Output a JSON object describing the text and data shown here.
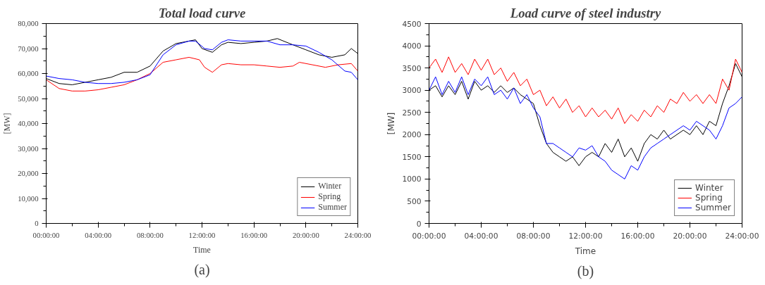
{
  "chart_data": [
    {
      "type": "line",
      "title": "Total load curve",
      "xlabel": "Time",
      "ylabel": "[MW]",
      "annotations": [
        "(a)"
      ],
      "xlim": [
        0,
        24
      ],
      "ylim": [
        0,
        80000
      ],
      "xticks": [
        {
          "value": 0,
          "label": "00:00:00"
        },
        {
          "value": 4,
          "label": "04:00:00"
        },
        {
          "value": 8,
          "label": "08:00:00"
        },
        {
          "value": 12,
          "label": "12:00:00"
        },
        {
          "value": 16,
          "label": "16:00:00"
        },
        {
          "value": 20,
          "label": "20:00:00"
        },
        {
          "value": 24,
          "label": "24:00:00"
        }
      ],
      "yticks": [
        0,
        {
          "value": 10000,
          "label": "10,000"
        },
        {
          "value": 20000,
          "label": "20,000"
        },
        {
          "value": 30000,
          "label": "30,000"
        },
        {
          "value": 40000,
          "label": "40,000"
        },
        {
          "value": 50000,
          "label": "50,000"
        },
        {
          "value": 60000,
          "label": "60,000"
        },
        {
          "value": 70000,
          "label": "70,000"
        },
        {
          "value": 80000,
          "label": "80,000"
        }
      ],
      "grid": false,
      "legend": "bottom right",
      "marker": "none",
      "line_style": "solid",
      "series": [
        {
          "name": "Winter",
          "color": "#000000",
          "x": [
            0,
            1,
            2,
            3,
            4,
            5,
            6,
            7,
            8,
            9,
            10,
            11,
            11.5,
            12,
            12.8,
            13.5,
            14,
            15,
            16,
            17,
            17.8,
            19,
            20,
            21,
            22,
            23,
            23.5,
            24
          ],
          "values": [
            58000,
            56000,
            55500,
            56500,
            57500,
            58500,
            60500,
            60500,
            63000,
            69000,
            72000,
            73000,
            73500,
            70000,
            68500,
            71500,
            72500,
            72000,
            72500,
            73000,
            74000,
            71500,
            69500,
            67500,
            66500,
            67500,
            70000,
            68000
          ]
        },
        {
          "name": "Spring",
          "color": "#ff0000",
          "x": [
            0,
            1,
            2,
            3,
            4,
            5,
            6,
            7,
            8,
            9,
            10,
            11,
            11.8,
            12.2,
            12.8,
            13.5,
            14,
            15,
            16,
            17,
            18,
            19,
            19.5,
            20.5,
            21.5,
            22.5,
            23.5,
            24
          ],
          "values": [
            57500,
            54000,
            53000,
            53000,
            53500,
            54500,
            55500,
            57500,
            60000,
            64500,
            65500,
            66500,
            65500,
            62500,
            60500,
            63500,
            64000,
            63500,
            63500,
            63000,
            62500,
            63000,
            64500,
            63500,
            62500,
            63500,
            64000,
            61000
          ]
        },
        {
          "name": "Summer",
          "color": "#0000ff",
          "x": [
            0,
            1,
            2,
            3,
            4,
            5,
            6,
            7,
            8,
            9,
            10,
            11,
            11.5,
            12.2,
            12.8,
            13.5,
            14,
            15,
            16,
            17,
            18,
            19,
            20,
            21,
            22,
            23,
            23.5,
            24
          ],
          "values": [
            59000,
            58000,
            57500,
            56500,
            56000,
            56000,
            56500,
            57500,
            59500,
            67500,
            71500,
            73000,
            73000,
            70000,
            69500,
            72500,
            73500,
            73000,
            73000,
            73000,
            71500,
            71500,
            71000,
            68500,
            65500,
            61000,
            60500,
            57500
          ]
        }
      ]
    },
    {
      "type": "line",
      "title": "Load curve of steel industry",
      "xlabel": "Time",
      "ylabel": "[MW]",
      "annotations": [
        "(b)"
      ],
      "xlim": [
        0,
        24
      ],
      "ylim": [
        0,
        4500
      ],
      "xticks": [
        {
          "value": 0,
          "label": "00:00:00"
        },
        {
          "value": 4,
          "label": "04:00:00"
        },
        {
          "value": 8,
          "label": "08:00:00"
        },
        {
          "value": 12,
          "label": "12:00:00"
        },
        {
          "value": 16,
          "label": "16:00:00"
        },
        {
          "value": 20,
          "label": "20:00:00"
        },
        {
          "value": 24,
          "label": "24:00:00"
        }
      ],
      "yticks": [
        0,
        500,
        1000,
        1500,
        2000,
        2500,
        3000,
        3500,
        4000,
        4500
      ],
      "grid": false,
      "legend": "bottom right",
      "marker": "none",
      "line_style": "solid",
      "x": [
        0,
        0.5,
        1,
        1.5,
        2,
        2.5,
        3,
        3.5,
        4,
        4.5,
        5,
        5.5,
        6,
        6.5,
        7,
        7.5,
        8,
        8.5,
        9,
        9.5,
        10,
        10.5,
        11,
        11.5,
        12,
        12.5,
        13,
        13.5,
        14,
        14.5,
        15,
        15.5,
        16,
        16.5,
        17,
        17.5,
        18,
        18.5,
        19,
        19.5,
        20,
        20.5,
        21,
        21.5,
        22,
        22.5,
        23,
        23.5,
        24
      ],
      "series": [
        {
          "name": "Winter",
          "color": "#000000",
          "values": [
            3000,
            3100,
            2850,
            3100,
            2900,
            3200,
            2800,
            3200,
            3000,
            3100,
            2950,
            3100,
            2950,
            3050,
            2900,
            2800,
            2700,
            2200,
            1800,
            1600,
            1500,
            1400,
            1500,
            1300,
            1500,
            1600,
            1500,
            1800,
            1600,
            1900,
            1500,
            1700,
            1400,
            1800,
            2000,
            1900,
            2100,
            1900,
            2000,
            2100,
            2000,
            2200,
            2000,
            2300,
            2200,
            2700,
            3100,
            3600,
            3300
          ]
        },
        {
          "name": "Spring",
          "color": "#ff0000",
          "values": [
            3500,
            3700,
            3400,
            3750,
            3400,
            3600,
            3350,
            3700,
            3450,
            3700,
            3350,
            3500,
            3200,
            3400,
            3100,
            3250,
            2900,
            3000,
            2650,
            2850,
            2600,
            2800,
            2500,
            2650,
            2400,
            2600,
            2400,
            2550,
            2350,
            2600,
            2250,
            2450,
            2300,
            2550,
            2400,
            2650,
            2500,
            2800,
            2700,
            2950,
            2750,
            2900,
            2700,
            2900,
            2700,
            3250,
            3000,
            3700,
            3400
          ]
        },
        {
          "name": "Summer",
          "color": "#0000ff",
          "values": [
            3000,
            3300,
            2900,
            3200,
            2950,
            3300,
            2900,
            3250,
            3100,
            3300,
            2900,
            3000,
            2800,
            3050,
            2700,
            2900,
            2600,
            2400,
            1800,
            1800,
            1700,
            1600,
            1500,
            1700,
            1650,
            1750,
            1500,
            1400,
            1200,
            1100,
            1000,
            1300,
            1200,
            1500,
            1700,
            1800,
            1900,
            2000,
            2100,
            2200,
            2100,
            2300,
            2200,
            2100,
            1900,
            2200,
            2600,
            2700,
            2850
          ]
        }
      ]
    }
  ]
}
